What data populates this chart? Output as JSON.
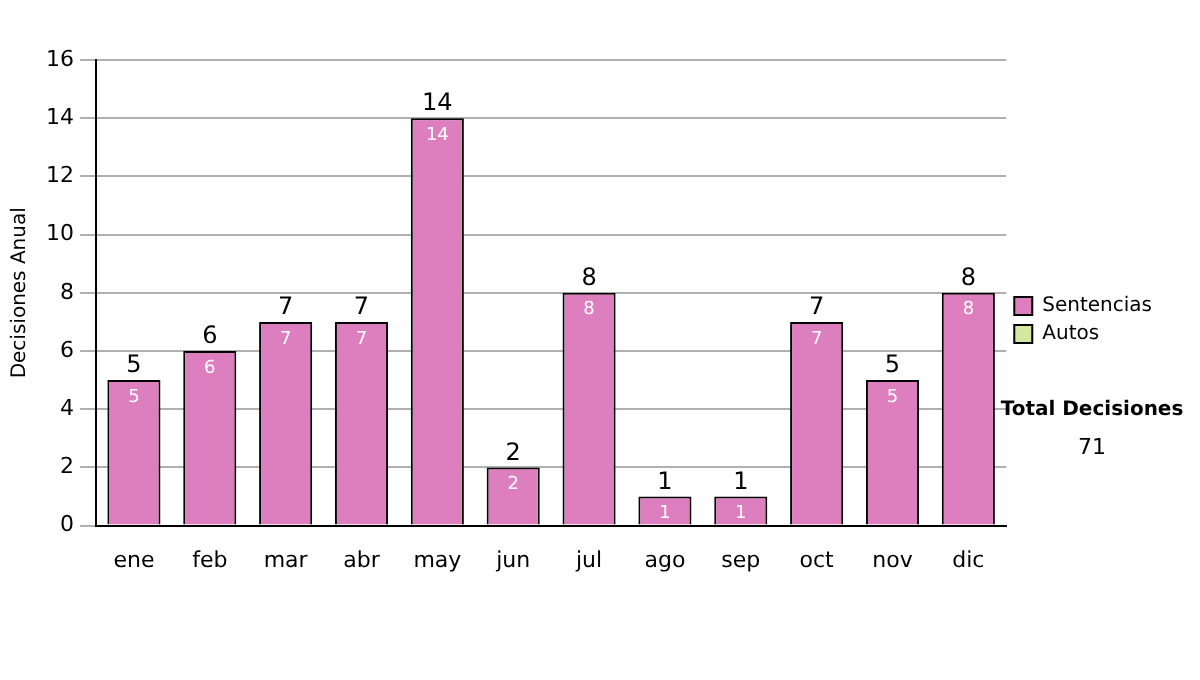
{
  "chart_data": {
    "type": "bar",
    "ylabel": "Decisiones Anual",
    "categories": [
      "ene",
      "feb",
      "mar",
      "abr",
      "may",
      "jun",
      "jul",
      "ago",
      "sep",
      "oct",
      "nov",
      "dic"
    ],
    "series": [
      {
        "name": "Sentencias",
        "color": "#dd7fbf",
        "values": [
          5,
          6,
          7,
          7,
          14,
          2,
          8,
          1,
          1,
          7,
          5,
          8
        ]
      },
      {
        "name": "Autos",
        "color": "#d4e8a0",
        "values": [
          null,
          null,
          null,
          null,
          null,
          null,
          null,
          null,
          null,
          null,
          null,
          null
        ]
      }
    ],
    "stacked": true,
    "data_labels": true,
    "totals": [
      "5",
      "6",
      "7",
      "7",
      "14",
      "2",
      "8",
      "1",
      "1",
      "7",
      "5",
      "8"
    ],
    "ylim": [
      0,
      16
    ],
    "yticks": [
      0,
      2,
      4,
      6,
      8,
      10,
      12,
      14,
      16
    ],
    "grid": "y",
    "legend": "right",
    "annotations": [
      "Total Decisiones",
      "71"
    ]
  }
}
